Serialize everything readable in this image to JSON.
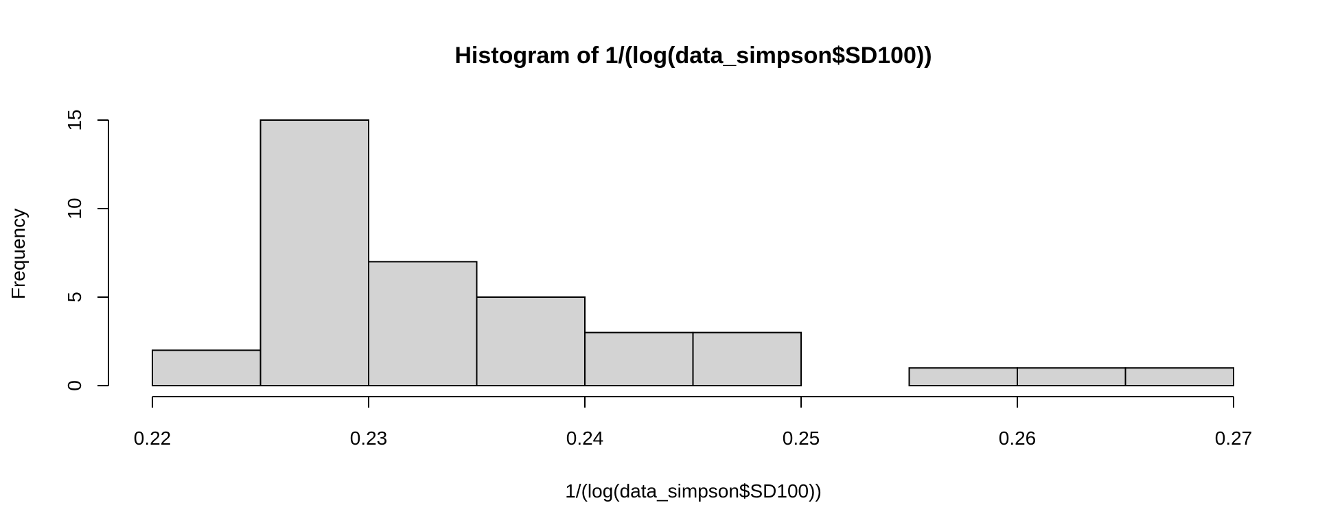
{
  "chart_data": {
    "type": "bar",
    "title": "Histogram of 1/(log(data_simpson$SD100))",
    "xlabel": "1/(log(data_simpson$SD100))",
    "ylabel": "Frequency",
    "bins": [
      {
        "from": 0.22,
        "to": 0.225,
        "count": 2
      },
      {
        "from": 0.225,
        "to": 0.23,
        "count": 15
      },
      {
        "from": 0.23,
        "to": 0.235,
        "count": 7
      },
      {
        "from": 0.235,
        "to": 0.24,
        "count": 5
      },
      {
        "from": 0.24,
        "to": 0.245,
        "count": 3
      },
      {
        "from": 0.245,
        "to": 0.25,
        "count": 3
      },
      {
        "from": 0.25,
        "to": 0.255,
        "count": 0
      },
      {
        "from": 0.255,
        "to": 0.26,
        "count": 1
      },
      {
        "from": 0.26,
        "to": 0.265,
        "count": 1
      },
      {
        "from": 0.265,
        "to": 0.27,
        "count": 1
      }
    ],
    "xlim": [
      0.22,
      0.27
    ],
    "ylim": [
      0,
      15
    ],
    "x_ticks": [
      0.22,
      0.23,
      0.24,
      0.25,
      0.26,
      0.27
    ],
    "x_tick_labels": [
      "0.22",
      "0.23",
      "0.24",
      "0.25",
      "0.26",
      "0.27"
    ],
    "y_ticks": [
      0,
      5,
      10,
      15
    ],
    "y_tick_labels": [
      "0",
      "5",
      "10",
      "15"
    ],
    "grid": false,
    "legend": "none",
    "bar_fill": "#d3d3d3",
    "bar_stroke": "#000000"
  }
}
